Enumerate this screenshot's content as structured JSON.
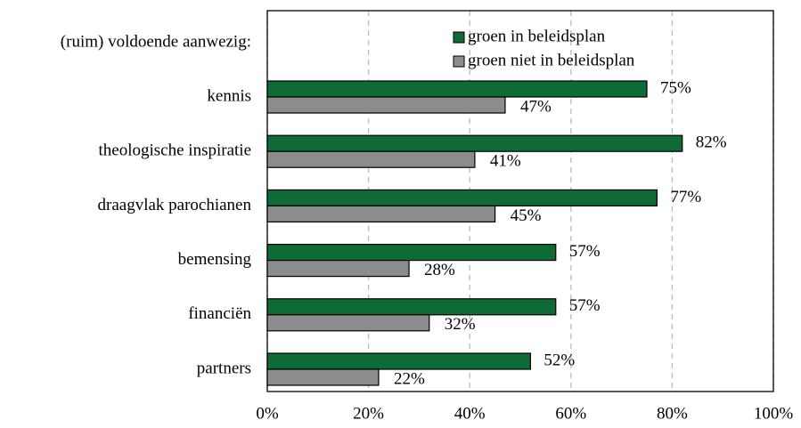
{
  "chart_data": {
    "type": "bar",
    "orientation": "horizontal",
    "annotation": "(ruim) voldoende aanwezig:",
    "categories": [
      "kennis",
      "theologische inspiratie",
      "draagvlak parochianen",
      "bemensing",
      "financiën",
      "partners"
    ],
    "series": [
      {
        "name": "groen in beleidsplan",
        "color": "#0e6b35",
        "values": [
          75,
          82,
          77,
          57,
          57,
          52
        ],
        "value_labels": [
          "75%",
          "82%",
          "77%",
          "57%",
          "57%",
          "52%"
        ]
      },
      {
        "name": "groen niet in beleidsplan",
        "color": "#8c8c8c",
        "values": [
          47,
          41,
          45,
          28,
          32,
          22
        ],
        "value_labels": [
          "47%",
          "41%",
          "45%",
          "28%",
          "32%",
          "22%"
        ]
      }
    ],
    "xlim": [
      0,
      100
    ],
    "xticks": [
      {
        "value": 0,
        "label": "0%"
      },
      {
        "value": 20,
        "label": "20%"
      },
      {
        "value": 40,
        "label": "40%"
      },
      {
        "value": 60,
        "label": "60%"
      },
      {
        "value": 80,
        "label": "80%"
      },
      {
        "value": 100,
        "label": "100%"
      }
    ],
    "grid": true,
    "legend": "top"
  }
}
